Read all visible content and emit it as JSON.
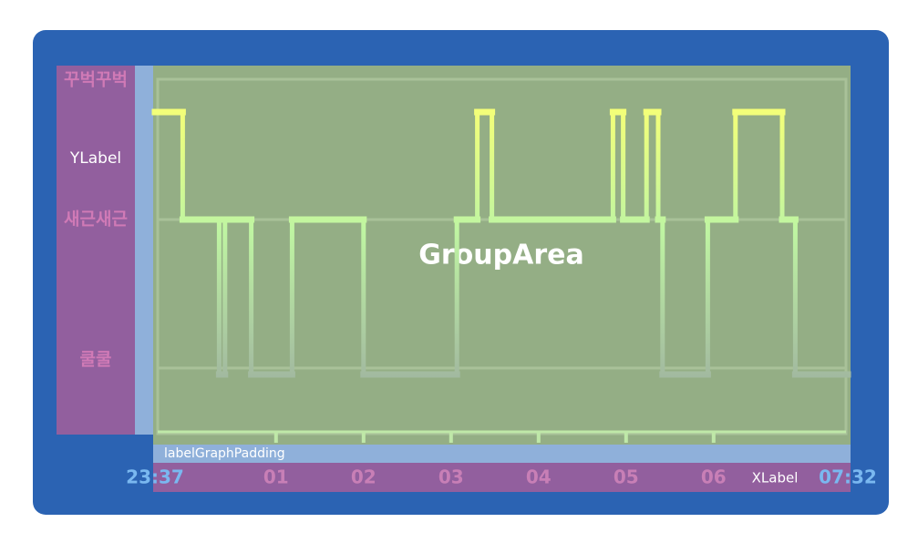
{
  "y_label_area": {
    "title": "YLabel",
    "labels": [
      "꾸벅꾸벅",
      "새근새근",
      "쿨쿨"
    ]
  },
  "group_area": {
    "title": "GroupArea"
  },
  "padding_label": "labelGraphPadding",
  "x_label_area": {
    "title": "XLabel"
  },
  "graph": {
    "xlim": [
      0,
      475
    ],
    "xticks": [
      {
        "value": 0,
        "label": "23:37"
      },
      {
        "value": 83,
        "label": "01"
      },
      {
        "value": 143,
        "label": "02"
      },
      {
        "value": 203,
        "label": "03"
      },
      {
        "value": 263,
        "label": "04"
      },
      {
        "value": 323,
        "label": "05"
      },
      {
        "value": 383,
        "label": "06"
      },
      {
        "value": 475,
        "label": "07:32"
      }
    ],
    "x": [
      0,
      19,
      44,
      48,
      66,
      94,
      143,
      207,
      221,
      231,
      314,
      321,
      337,
      345,
      348,
      379,
      398,
      430,
      439
    ],
    "values": [
      0,
      1,
      2,
      1,
      2,
      1,
      2,
      1,
      0,
      1,
      0,
      1,
      0,
      1,
      2,
      1,
      0,
      1,
      2
    ]
  }
}
